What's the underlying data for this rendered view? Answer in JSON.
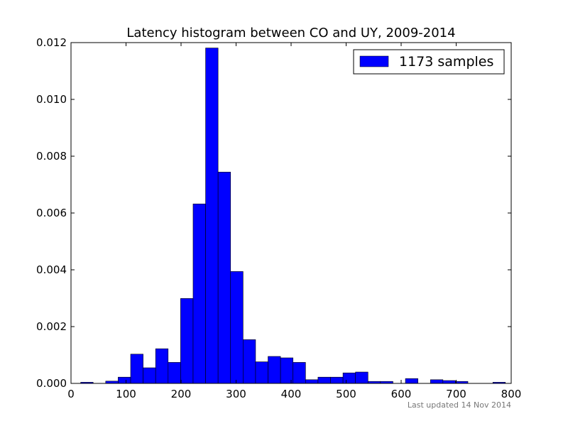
{
  "chart_data": {
    "type": "bar",
    "title": "Latency histogram between CO and UY, 2009-2014",
    "xlabel": "",
    "ylabel": "",
    "xlim": [
      0,
      800
    ],
    "ylim": [
      0,
      0.012
    ],
    "x_ticks": [
      "0",
      "100",
      "200",
      "300",
      "400",
      "500",
      "600",
      "700",
      "800"
    ],
    "y_ticks": [
      "0.000",
      "0.002",
      "0.004",
      "0.006",
      "0.008",
      "0.010",
      "0.012"
    ],
    "bin_width": 22.7,
    "bin_start": 17.6,
    "grid": false,
    "legend_position": "top-right",
    "series": [
      {
        "name": "1173 samples",
        "color": "#0000ff",
        "values": [
          4e-05,
          0.0,
          8e-05,
          0.00022,
          0.00103,
          0.00055,
          0.00122,
          0.00074,
          0.00299,
          0.00632,
          0.01181,
          0.00744,
          0.00394,
          0.00154,
          0.00076,
          0.00095,
          0.0009,
          0.00074,
          0.00013,
          0.00022,
          0.00022,
          0.00037,
          0.0004,
          7e-05,
          7e-05,
          0.0,
          0.00017,
          0.0,
          0.00013,
          0.0001,
          7e-05,
          0.0,
          0.0,
          4e-05
        ]
      }
    ]
  },
  "footnote": "Last updated 14 Nov 2014"
}
